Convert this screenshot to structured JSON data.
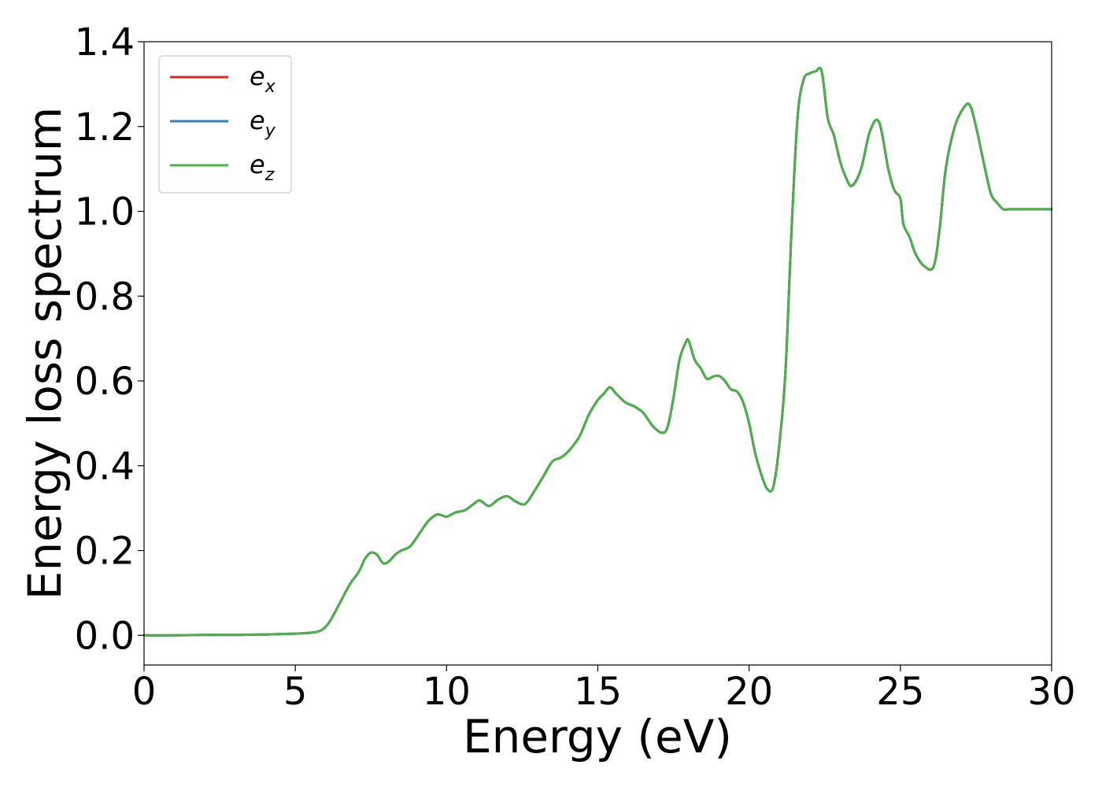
{
  "chart_data": {
    "type": "line",
    "xlabel": "Energy (eV)",
    "ylabel": "Energy loss spectrum",
    "xlim": [
      0,
      30
    ],
    "ylim": [
      -0.07,
      1.4
    ],
    "xticks": [
      0,
      5,
      10,
      15,
      20,
      25,
      30
    ],
    "xtick_labels": [
      "0",
      "5",
      "10",
      "15",
      "20",
      "25",
      "30"
    ],
    "yticks": [
      0.0,
      0.2,
      0.4,
      0.6,
      0.8,
      1.0,
      1.2,
      1.4
    ],
    "ytick_labels": [
      "0.0",
      "0.2",
      "0.4",
      "0.6",
      "0.8",
      "1.0",
      "1.2",
      "1.4"
    ],
    "grid": false,
    "legend_position": "top-left",
    "x": [
      0,
      1,
      2,
      3,
      4,
      5,
      5.5,
      5.8,
      6.0,
      6.2,
      6.5,
      6.8,
      7.1,
      7.3,
      7.5,
      7.7,
      7.9,
      8.1,
      8.3,
      8.5,
      8.8,
      9.1,
      9.4,
      9.7,
      10.0,
      10.3,
      10.6,
      10.9,
      11.1,
      11.4,
      11.7,
      12.0,
      12.3,
      12.6,
      12.9,
      13.2,
      13.5,
      13.8,
      14.1,
      14.4,
      14.7,
      15.0,
      15.2,
      15.4,
      15.6,
      15.9,
      16.2,
      16.5,
      16.8,
      17.1,
      17.3,
      17.5,
      17.7,
      17.9,
      18.0,
      18.2,
      18.4,
      18.6,
      18.8,
      19.0,
      19.2,
      19.4,
      19.6,
      19.8,
      20.0,
      20.2,
      20.4,
      20.6,
      20.8,
      21.0,
      21.2,
      21.4,
      21.6,
      21.8,
      22.0,
      22.2,
      22.4,
      22.6,
      22.8,
      23.0,
      23.2,
      23.4,
      23.7,
      24.0,
      24.3,
      24.6,
      24.8,
      25.0,
      25.1,
      25.3,
      25.5,
      25.8,
      26.1,
      26.3,
      26.5,
      26.8,
      27.1,
      27.3,
      27.5,
      27.8,
      28.0,
      28.2,
      28.4,
      28.6,
      28.8,
      29.0,
      29.2,
      29.5,
      29.8,
      30.0
    ],
    "series": [
      {
        "name": "e_x",
        "name_base": "e",
        "name_sub": "x",
        "color": "#d62728",
        "values": [
          0.0,
          0.0,
          0.001,
          0.001,
          0.002,
          0.004,
          0.006,
          0.01,
          0.02,
          0.04,
          0.08,
          0.12,
          0.15,
          0.18,
          0.195,
          0.19,
          0.17,
          0.175,
          0.19,
          0.2,
          0.21,
          0.24,
          0.27,
          0.285,
          0.28,
          0.29,
          0.295,
          0.31,
          0.318,
          0.305,
          0.32,
          0.328,
          0.315,
          0.31,
          0.34,
          0.375,
          0.41,
          0.42,
          0.44,
          0.47,
          0.52,
          0.555,
          0.57,
          0.585,
          0.57,
          0.55,
          0.54,
          0.525,
          0.495,
          0.478,
          0.49,
          0.56,
          0.65,
          0.69,
          0.695,
          0.65,
          0.63,
          0.605,
          0.61,
          0.612,
          0.6,
          0.58,
          0.575,
          0.55,
          0.5,
          0.43,
          0.38,
          0.345,
          0.35,
          0.45,
          0.62,
          0.95,
          1.22,
          1.31,
          1.325,
          1.33,
          1.33,
          1.22,
          1.18,
          1.12,
          1.08,
          1.06,
          1.1,
          1.19,
          1.21,
          1.1,
          1.05,
          1.03,
          0.97,
          0.94,
          0.9,
          0.87,
          0.87,
          0.96,
          1.1,
          1.2,
          1.245,
          1.25,
          1.2,
          1.1,
          1.04,
          1.02,
          1.005,
          1.005,
          1.005,
          1.005,
          1.005,
          1.005,
          1.005,
          1.005
        ]
      },
      {
        "name": "e_y",
        "name_base": "e",
        "name_sub": "y",
        "color": "#377eb8",
        "values": [
          0.0,
          0.0,
          0.001,
          0.001,
          0.002,
          0.004,
          0.006,
          0.01,
          0.02,
          0.04,
          0.08,
          0.12,
          0.15,
          0.18,
          0.195,
          0.19,
          0.17,
          0.175,
          0.19,
          0.2,
          0.21,
          0.24,
          0.27,
          0.285,
          0.28,
          0.29,
          0.295,
          0.31,
          0.318,
          0.305,
          0.32,
          0.328,
          0.315,
          0.31,
          0.34,
          0.375,
          0.41,
          0.42,
          0.44,
          0.47,
          0.52,
          0.555,
          0.57,
          0.585,
          0.57,
          0.55,
          0.54,
          0.525,
          0.495,
          0.478,
          0.49,
          0.56,
          0.65,
          0.69,
          0.695,
          0.65,
          0.63,
          0.605,
          0.61,
          0.612,
          0.6,
          0.58,
          0.575,
          0.55,
          0.5,
          0.43,
          0.38,
          0.345,
          0.35,
          0.45,
          0.62,
          0.95,
          1.22,
          1.31,
          1.325,
          1.33,
          1.33,
          1.22,
          1.18,
          1.12,
          1.08,
          1.06,
          1.1,
          1.19,
          1.21,
          1.1,
          1.05,
          1.03,
          0.97,
          0.94,
          0.9,
          0.87,
          0.87,
          0.96,
          1.1,
          1.2,
          1.245,
          1.25,
          1.2,
          1.1,
          1.04,
          1.02,
          1.005,
          1.005,
          1.005,
          1.005,
          1.005,
          1.005,
          1.005,
          1.005
        ]
      },
      {
        "name": "e_z",
        "name_base": "e",
        "name_sub": "z",
        "color": "#4daf4a",
        "values": [
          0.0,
          0.0,
          0.001,
          0.001,
          0.002,
          0.004,
          0.006,
          0.01,
          0.02,
          0.04,
          0.08,
          0.12,
          0.15,
          0.18,
          0.195,
          0.19,
          0.17,
          0.175,
          0.19,
          0.2,
          0.21,
          0.24,
          0.27,
          0.285,
          0.28,
          0.29,
          0.295,
          0.31,
          0.318,
          0.305,
          0.32,
          0.328,
          0.315,
          0.31,
          0.34,
          0.375,
          0.41,
          0.42,
          0.44,
          0.47,
          0.52,
          0.555,
          0.57,
          0.585,
          0.57,
          0.55,
          0.54,
          0.525,
          0.495,
          0.478,
          0.49,
          0.56,
          0.65,
          0.69,
          0.695,
          0.65,
          0.63,
          0.605,
          0.61,
          0.612,
          0.6,
          0.58,
          0.575,
          0.55,
          0.5,
          0.43,
          0.38,
          0.345,
          0.35,
          0.45,
          0.62,
          0.95,
          1.22,
          1.31,
          1.325,
          1.33,
          1.33,
          1.22,
          1.18,
          1.12,
          1.08,
          1.06,
          1.1,
          1.19,
          1.21,
          1.1,
          1.05,
          1.03,
          0.97,
          0.94,
          0.9,
          0.87,
          0.87,
          0.96,
          1.1,
          1.2,
          1.245,
          1.25,
          1.2,
          1.1,
          1.04,
          1.02,
          1.005,
          1.005,
          1.005,
          1.005,
          1.005,
          1.005,
          1.005,
          1.005
        ]
      }
    ]
  }
}
